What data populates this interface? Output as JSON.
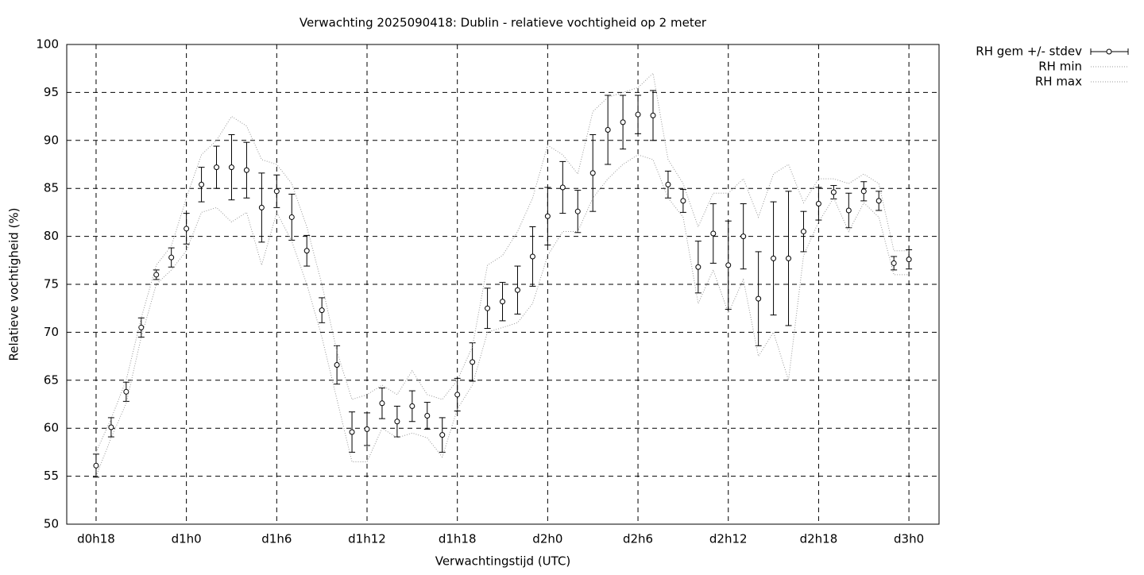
{
  "chart_data": {
    "type": "errorbar",
    "title": "Verwachting 2025090418: Dublin - relatieve vochtigheid op 2 meter",
    "x_label": "Verwachtingstijd (UTC)",
    "y_label": "Relatieve vochtigheid (%)",
    "x": [
      0,
      1,
      2,
      3,
      4,
      5,
      6,
      7,
      8,
      9,
      10,
      11,
      12,
      13,
      14,
      15,
      16,
      17,
      18,
      19,
      20,
      21,
      22,
      23,
      24,
      25,
      26,
      27,
      28,
      29,
      30,
      31,
      32,
      33,
      34,
      35,
      36,
      37,
      38,
      39,
      40,
      41,
      42,
      43,
      44,
      45,
      46,
      47,
      48,
      49,
      50,
      51,
      52,
      53,
      54
    ],
    "series": [
      {
        "name": "RH gem +/- stdev",
        "color": "#000000",
        "values": [
          56.1,
          60.1,
          63.8,
          70.5,
          76.0,
          77.8,
          80.8,
          85.4,
          87.2,
          87.2,
          86.9,
          83.0,
          84.7,
          82.0,
          78.5,
          72.3,
          66.6,
          59.6,
          59.9,
          62.6,
          60.7,
          62.3,
          61.3,
          59.3,
          63.5,
          66.9,
          72.5,
          73.2,
          74.4,
          77.9,
          82.1,
          85.1,
          82.6,
          86.6,
          91.1,
          91.9,
          92.7,
          92.6,
          85.4,
          83.7,
          76.8,
          80.3,
          77.0,
          80.0,
          73.5,
          77.7,
          77.7,
          80.5,
          83.4,
          84.6,
          82.7,
          84.7,
          83.7,
          77.2,
          77.6
        ],
        "errors": [
          1.2,
          1.0,
          1.0,
          1.0,
          0.5,
          1.0,
          1.6,
          1.8,
          2.2,
          3.4,
          2.9,
          3.6,
          1.7,
          2.4,
          1.6,
          1.3,
          2.0,
          2.1,
          1.7,
          1.6,
          1.6,
          1.6,
          1.4,
          1.8,
          1.7,
          2.0,
          2.1,
          2.0,
          2.5,
          3.1,
          3.0,
          2.7,
          2.2,
          4.0,
          3.6,
          2.8,
          2.0,
          2.6,
          1.4,
          1.2,
          2.7,
          3.1,
          4.6,
          3.4,
          4.9,
          5.9,
          7.0,
          2.1,
          1.7,
          0.7,
          1.8,
          1.0,
          1.0,
          0.7,
          1.0
        ]
      },
      {
        "name": "RH min",
        "color": "#999999",
        "values": [
          55.0,
          59.0,
          62.6,
          69.5,
          75.0,
          76.5,
          78.5,
          82.5,
          83.0,
          81.5,
          82.5,
          77.0,
          82.5,
          79.5,
          75.0,
          69.5,
          63.0,
          56.5,
          56.5,
          60.0,
          59.0,
          59.5,
          59.0,
          57.0,
          62.0,
          64.5,
          70.0,
          70.5,
          71.0,
          73.0,
          78.0,
          80.5,
          80.5,
          84.0,
          86.0,
          87.5,
          88.5,
          88.0,
          84.0,
          82.0,
          73.0,
          76.5,
          72.0,
          75.5,
          67.5,
          70.0,
          65.0,
          78.0,
          81.5,
          84.0,
          80.5,
          83.5,
          82.0,
          76.0,
          76.0
        ]
      },
      {
        "name": "RH max",
        "color": "#999999",
        "values": [
          57.5,
          61.0,
          65.0,
          71.5,
          77.0,
          79.0,
          84.0,
          88.5,
          90.0,
          92.5,
          91.5,
          88.0,
          87.5,
          85.5,
          81.0,
          75.0,
          68.0,
          63.0,
          63.5,
          64.5,
          63.5,
          66.0,
          63.5,
          63.0,
          65.0,
          68.5,
          77.0,
          78.0,
          80.5,
          84.0,
          89.5,
          88.5,
          86.5,
          93.0,
          94.5,
          95.0,
          95.5,
          97.0,
          88.0,
          85.5,
          81.0,
          84.5,
          84.5,
          86.0,
          82.0,
          86.5,
          87.5,
          83.5,
          86.0,
          86.0,
          85.5,
          86.5,
          85.5,
          78.5,
          78.5
        ]
      }
    ],
    "xlim": [
      -1.95,
      56
    ],
    "xticks": [
      {
        "value": 0,
        "label": "d0h18"
      },
      {
        "value": 6,
        "label": "d1h0"
      },
      {
        "value": 12,
        "label": "d1h6"
      },
      {
        "value": 18,
        "label": "d1h12"
      },
      {
        "value": 24,
        "label": "d1h18"
      },
      {
        "value": 30,
        "label": "d2h0"
      },
      {
        "value": 36,
        "label": "d2h6"
      },
      {
        "value": 42,
        "label": "d2h12"
      },
      {
        "value": 48,
        "label": "d2h18"
      },
      {
        "value": 54,
        "label": "d3h0"
      }
    ],
    "ylim": [
      50,
      100
    ],
    "yticks": [
      50,
      55,
      60,
      65,
      70,
      75,
      80,
      85,
      90,
      95,
      100
    ],
    "grid": true,
    "legend": "outside-right"
  }
}
